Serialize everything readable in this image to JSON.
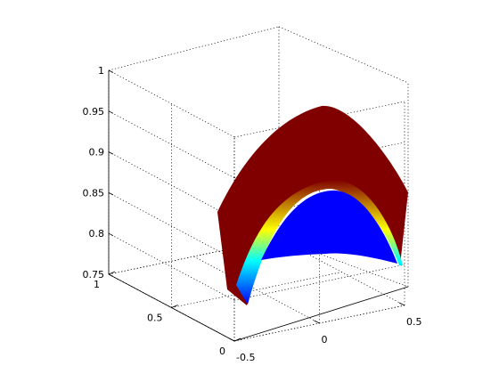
{
  "chart_data": {
    "type": "surface",
    "title": "",
    "xlabel": "",
    "ylabel": "",
    "zlabel": "",
    "grid": true,
    "colormap": "jet",
    "colors": {
      "surface_high": "#800000",
      "surface_low": "#0000ff",
      "transition": [
        "#ffff00",
        "#00ffff",
        "#00ccff"
      ],
      "grid": "#000000",
      "axes": "#000000"
    },
    "x_range": [
      -0.5,
      0.5
    ],
    "y_range": [
      0,
      1
    ],
    "zlim": [
      0.75,
      1
    ],
    "x_ticks": [
      {
        "value": -0.5,
        "label": "-0.5"
      },
      {
        "value": 0,
        "label": "0"
      },
      {
        "value": 0.5,
        "label": "0.5"
      }
    ],
    "y_ticks": [
      {
        "value": 0,
        "label": "0"
      },
      {
        "value": 0.5,
        "label": "0.5"
      },
      {
        "value": 1,
        "label": "1"
      }
    ],
    "z_ticks": [
      {
        "value": 0.75,
        "label": "0.75"
      },
      {
        "value": 0.8,
        "label": "0.8"
      },
      {
        "value": 0.85,
        "label": "0.85"
      },
      {
        "value": 0.9,
        "label": "0.9"
      },
      {
        "value": 0.95,
        "label": "0.95"
      },
      {
        "value": 1,
        "label": "1"
      }
    ],
    "surface": {
      "outer_crest_z": 0.955,
      "outer_left_end_z": 0.826,
      "outer_right_end_z": 0.853,
      "outer_left_bottom_z": 0.75,
      "outer_right_bottom_z": 0.75,
      "inner_crest_z": 0.855,
      "inner_bottom_z": 0.75
    }
  }
}
